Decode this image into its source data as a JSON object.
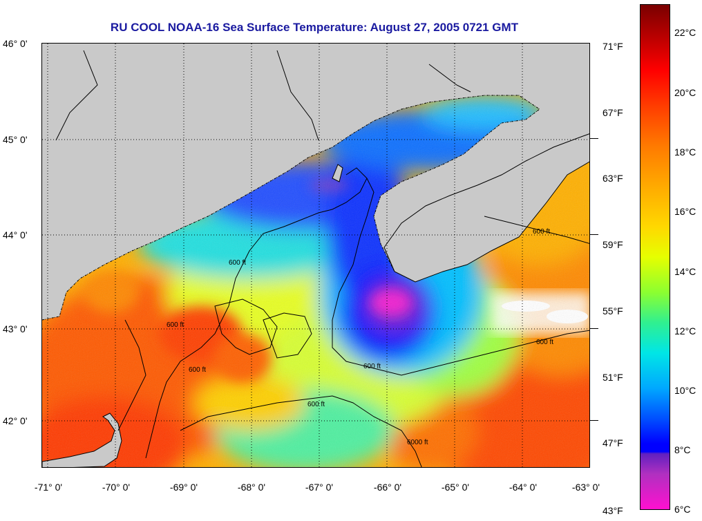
{
  "title": "RU COOL  NOAA-16  Sea Surface Temperature:  August 27, 2005 0721 GMT",
  "latitude_labels": [
    "46° 0'",
    "45° 0'",
    "44° 0'",
    "43° 0'",
    "42° 0'"
  ],
  "longitude_labels": [
    "-71° 0'",
    "-70° 0'",
    "-69° 0'",
    "-68° 0'",
    "-67° 0'",
    "-66° 0'",
    "-65° 0'",
    "-64° 0'",
    "-63° 0'"
  ],
  "contour_label": "600 ft",
  "contour_label_alt": "6000 ft",
  "colorbar": {
    "fahrenheit": [
      "71°F",
      "67°F",
      "63°F",
      "59°F",
      "55°F",
      "51°F",
      "47°F",
      "43°F"
    ],
    "celsius": [
      "22°C",
      "20°C",
      "18°C",
      "16°C",
      "14°C",
      "12°C",
      "10°C",
      "8°C",
      "6°C"
    ],
    "range_c": [
      6,
      23
    ]
  },
  "colors": {
    "land": "#c9c9c9",
    "title": "#1a1aa0",
    "cold": "#0000ff",
    "warm": "#ff5000"
  }
}
